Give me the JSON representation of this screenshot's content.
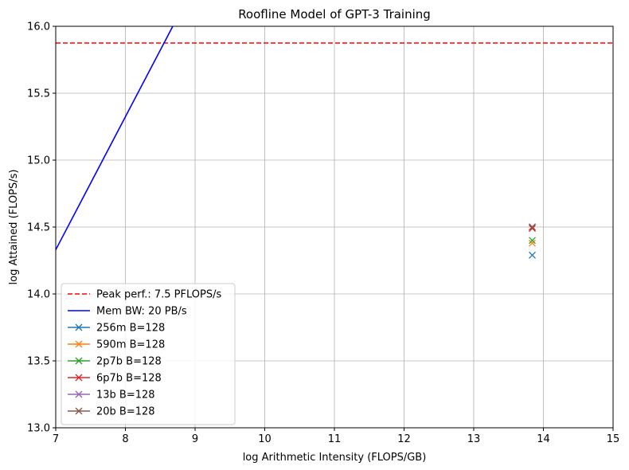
{
  "chart_data": {
    "type": "line",
    "title": "Roofline Model of GPT-3 Training",
    "xlabel": "log Arithmetic Intensity (FLOPS/GB)",
    "ylabel": "log Attained (FLOPS/s)",
    "xlim": [
      7,
      15
    ],
    "ylim": [
      13.0,
      16.0
    ],
    "x_ticks": [
      "7",
      "8",
      "9",
      "10",
      "11",
      "12",
      "13",
      "14",
      "15"
    ],
    "y_ticks": [
      "13.0",
      "13.5",
      "14.0",
      "14.5",
      "15.0",
      "15.5",
      "16.0"
    ],
    "grid": true,
    "legend_position": "lower-left",
    "peak": {
      "name": "Peak perf.: 7.5 PFLOPS/s",
      "y": 15.875,
      "color": "#ff0000",
      "style": "dashed"
    },
    "memory_bandwidth": {
      "name": "Mem BW: 20 PB/s",
      "x": [
        7,
        8.68
      ],
      "y": [
        14.33,
        16.0
      ],
      "color": "#0000ff"
    },
    "series": [
      {
        "name": "256m B=128",
        "x": [
          13.84
        ],
        "y": [
          14.29
        ],
        "color": "#1f77b4",
        "marker": "x"
      },
      {
        "name": "590m B=128",
        "x": [
          13.84
        ],
        "y": [
          14.38
        ],
        "color": "#ff7f0e",
        "marker": "x"
      },
      {
        "name": "2p7b B=128",
        "x": [
          13.84
        ],
        "y": [
          14.4
        ],
        "color": "#2ca02c",
        "marker": "x"
      },
      {
        "name": "6p7b B=128",
        "x": [
          13.84
        ],
        "y": [
          14.49
        ],
        "color": "#d62728",
        "marker": "x"
      },
      {
        "name": "13b B=128",
        "x": [
          13.84
        ],
        "y": [
          14.5
        ],
        "color": "#9467bd",
        "marker": "x"
      },
      {
        "name": "20b B=128",
        "x": [
          13.84
        ],
        "y": [
          14.5
        ],
        "color": "#8c564b",
        "marker": "x"
      }
    ]
  }
}
